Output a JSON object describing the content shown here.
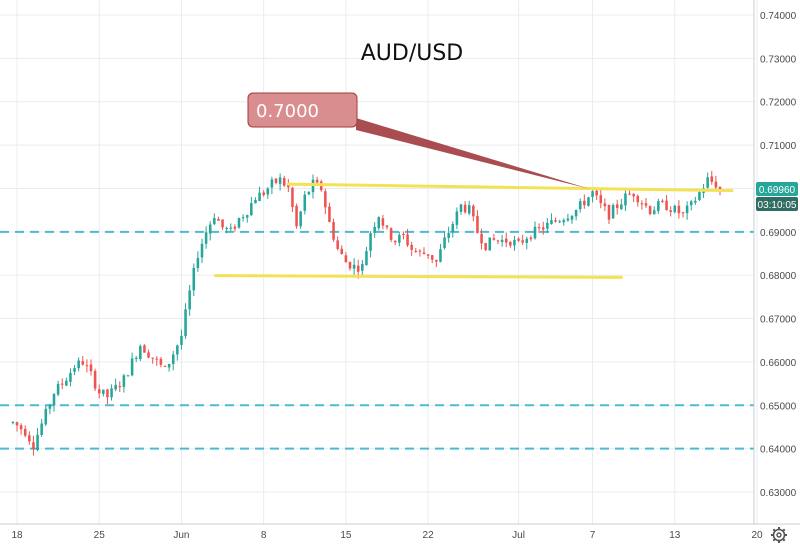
{
  "chart_data": {
    "type": "candlestick",
    "title": "AUD/USD",
    "y_ticks": [
      "0.74000",
      "0.73000",
      "0.72000",
      "0.71000",
      "0.70000",
      "0.69000",
      "0.68000",
      "0.67000",
      "0.66000",
      "0.65000",
      "0.64000",
      "0.63000"
    ],
    "ylim": [
      0.6255,
      0.7422
    ],
    "x_ticks": [
      {
        "label": "18",
        "session": 1
      },
      {
        "label": "25",
        "session": 21
      },
      {
        "label": "Jun",
        "session": 41
      },
      {
        "label": "8",
        "session": 61
      },
      {
        "label": "15",
        "session": 81
      },
      {
        "label": "22",
        "session": 101
      },
      {
        "label": "Jul",
        "session": 123
      },
      {
        "label": "7",
        "session": 141
      },
      {
        "label": "13",
        "session": 161
      },
      {
        "label": "20",
        "session": 181
      }
    ],
    "sessions": 186,
    "last_price": "0.69960",
    "countdown": "03:10:05",
    "annotation": "0.7000",
    "key_levels": {
      "support_dashed": [
        0.69,
        0.65,
        0.64
      ],
      "resistance_line": {
        "from_session": 67,
        "from_price": 0.701,
        "to_session": 181,
        "to_price": 0.6995
      },
      "support_line": {
        "from_session": 50,
        "from_price": 0.6799,
        "to_session": 148,
        "to_price": 0.6795
      }
    },
    "price_path": [
      [
        0,
        0.646
      ],
      [
        3,
        0.644
      ],
      [
        5,
        0.641
      ],
      [
        8,
        0.648
      ],
      [
        10,
        0.653
      ],
      [
        12,
        0.655
      ],
      [
        15,
        0.659
      ],
      [
        17,
        0.66
      ],
      [
        19,
        0.657
      ],
      [
        21,
        0.653
      ],
      [
        23,
        0.652
      ],
      [
        25,
        0.654
      ],
      [
        27,
        0.656
      ],
      [
        29,
        0.66
      ],
      [
        31,
        0.664
      ],
      [
        33,
        0.662
      ],
      [
        35,
        0.66
      ],
      [
        37,
        0.658
      ],
      [
        39,
        0.662
      ],
      [
        41,
        0.666
      ],
      [
        43,
        0.676
      ],
      [
        45,
        0.685
      ],
      [
        47,
        0.69
      ],
      [
        49,
        0.694
      ],
      [
        51,
        0.691
      ],
      [
        53,
        0.69
      ],
      [
        55,
        0.693
      ],
      [
        57,
        0.695
      ],
      [
        59,
        0.698
      ],
      [
        61,
        0.699
      ],
      [
        63,
        0.701
      ],
      [
        65,
        0.702
      ],
      [
        67,
        0.7
      ],
      [
        69,
        0.691
      ],
      [
        71,
        0.698
      ],
      [
        73,
        0.701
      ],
      [
        75,
        0.7
      ],
      [
        77,
        0.692
      ],
      [
        79,
        0.686
      ],
      [
        81,
        0.683
      ],
      [
        83,
        0.682
      ],
      [
        85,
        0.682
      ],
      [
        87,
        0.69
      ],
      [
        89,
        0.694
      ],
      [
        91,
        0.69
      ],
      [
        93,
        0.688
      ],
      [
        95,
        0.689
      ],
      [
        97,
        0.686
      ],
      [
        99,
        0.685
      ],
      [
        101,
        0.685
      ],
      [
        103,
        0.683
      ],
      [
        105,
        0.688
      ],
      [
        107,
        0.692
      ],
      [
        109,
        0.696
      ],
      [
        111,
        0.695
      ],
      [
        113,
        0.69
      ],
      [
        115,
        0.687
      ],
      [
        117,
        0.688
      ],
      [
        119,
        0.688
      ],
      [
        121,
        0.688
      ],
      [
        123,
        0.687
      ],
      [
        125,
        0.689
      ],
      [
        127,
        0.69
      ],
      [
        129,
        0.691
      ],
      [
        131,
        0.692
      ],
      [
        133,
        0.693
      ],
      [
        135,
        0.694
      ],
      [
        137,
        0.695
      ],
      [
        139,
        0.697
      ],
      [
        141,
        0.699
      ],
      [
        143,
        0.696
      ],
      [
        145,
        0.694
      ],
      [
        147,
        0.696
      ],
      [
        149,
        0.698
      ],
      [
        151,
        0.699
      ],
      [
        153,
        0.697
      ],
      [
        155,
        0.695
      ],
      [
        157,
        0.696
      ],
      [
        159,
        0.696
      ],
      [
        161,
        0.695
      ],
      [
        163,
        0.694
      ],
      [
        165,
        0.696
      ],
      [
        167,
        0.699
      ],
      [
        169,
        0.702
      ],
      [
        171,
        0.701
      ],
      [
        172,
        0.6996
      ]
    ]
  },
  "colors": {
    "up": "#26a69a",
    "down": "#ef5350",
    "grid": "#e9ecef",
    "dashed_level": "#4fb8d3",
    "trendline": "#f5e154",
    "callout_fill": "#d98d8f",
    "callout_border": "#a03a3d",
    "callout_line": "#a03a3d",
    "price_badge": "#26a69a",
    "countdown_badge": "#2f6c62",
    "axis": "#555555"
  },
  "icons": {
    "settings": "gear-icon"
  }
}
